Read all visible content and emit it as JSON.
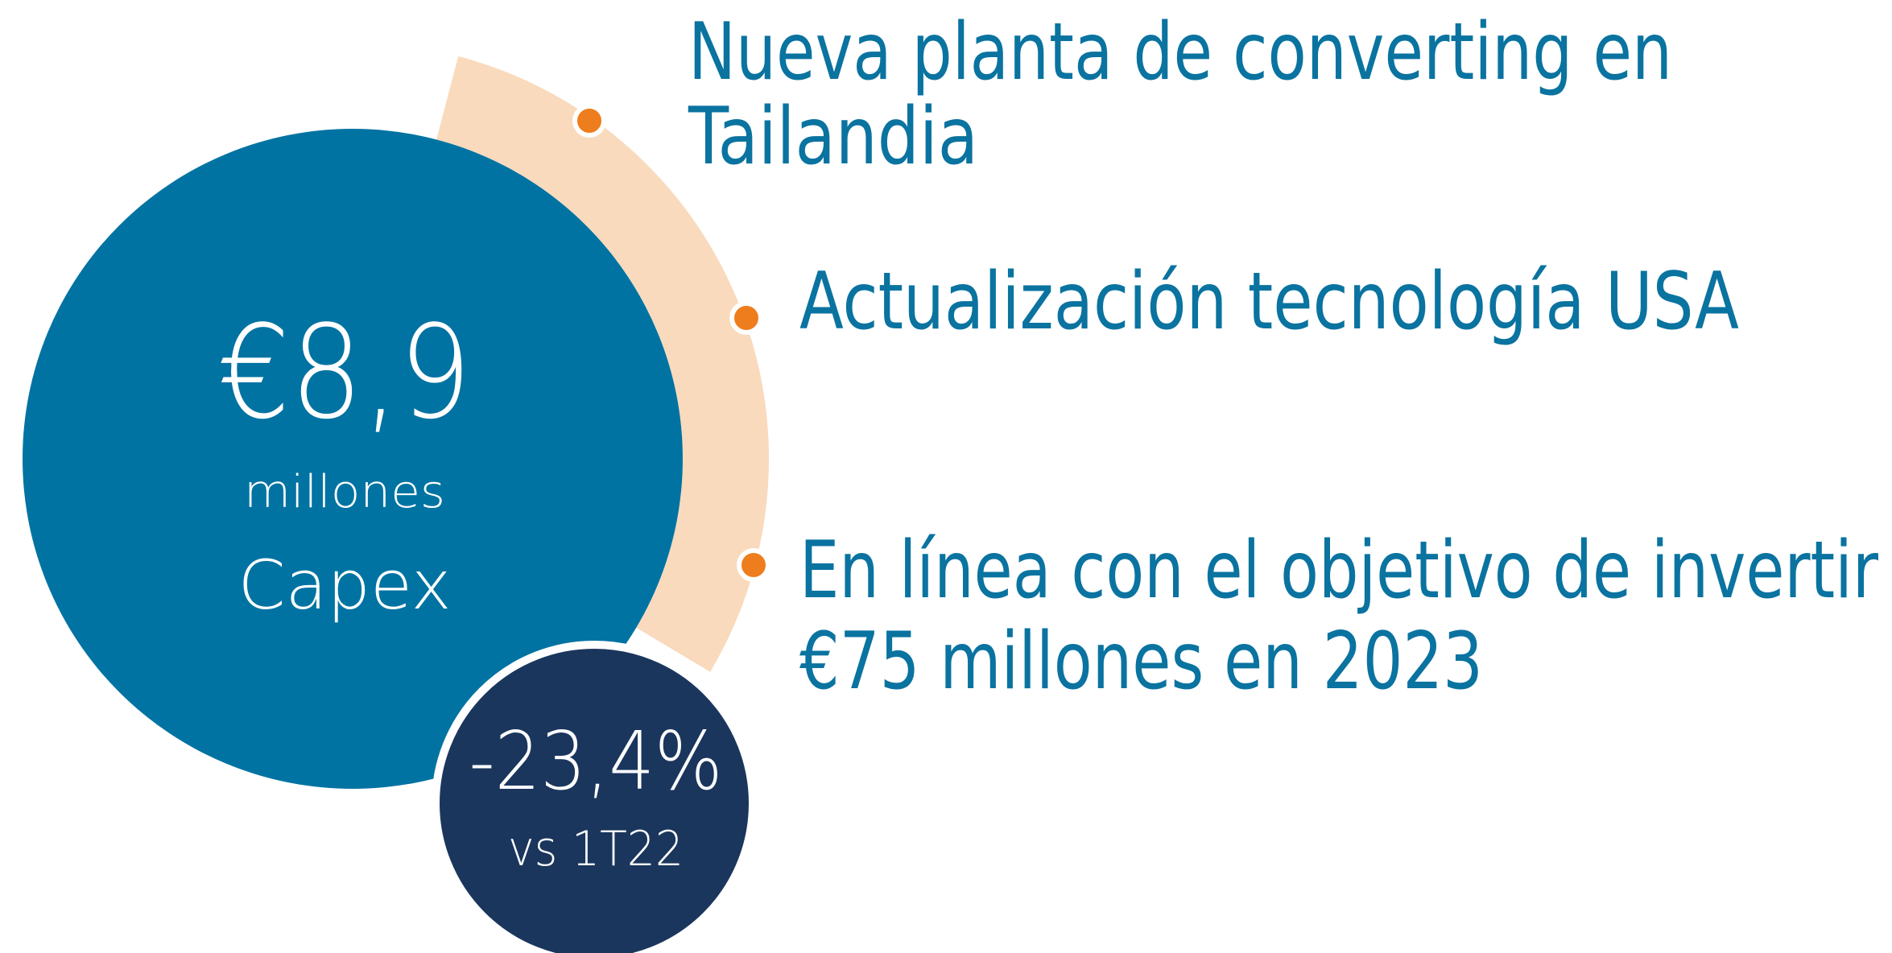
{
  "capex": {
    "value": "€8,9",
    "unit": "millones",
    "label": "Capex"
  },
  "change": {
    "value": "-23,4%",
    "label": "vs 1T22"
  },
  "highlights": [
    {
      "lines": [
        "Nueva planta de converting en",
        "Tailandia"
      ]
    },
    {
      "lines": [
        "Actualización tecnología USA"
      ]
    },
    {
      "lines": [
        "En línea con el objetivo de invertir",
        "€75 millones en 2023"
      ]
    }
  ]
}
